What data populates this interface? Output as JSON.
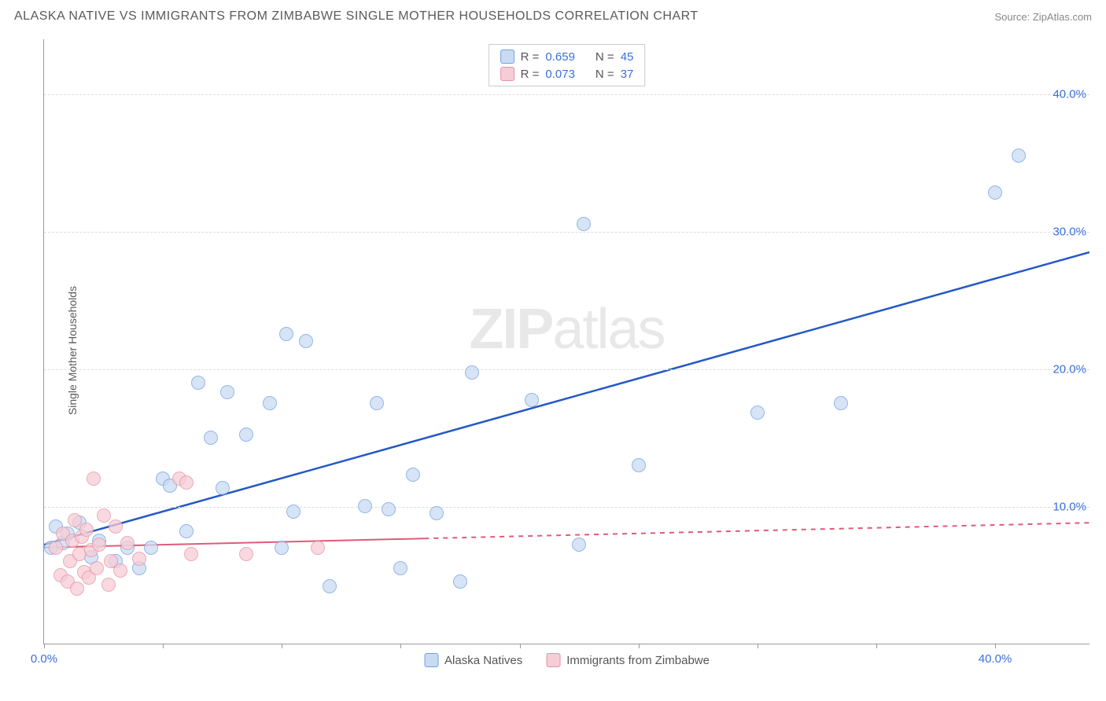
{
  "header": {
    "title": "ALASKA NATIVE VS IMMIGRANTS FROM ZIMBABWE SINGLE MOTHER HOUSEHOLDS CORRELATION CHART",
    "source": "Source: ZipAtlas.com"
  },
  "y_axis_label": "Single Mother Households",
  "watermark": {
    "bold": "ZIP",
    "rest": "atlas"
  },
  "chart": {
    "type": "scatter",
    "xlim": [
      0,
      44
    ],
    "ylim": [
      0,
      44
    ],
    "x_ticks": [
      {
        "pos": 0,
        "label": "0.0%"
      },
      {
        "pos": 5,
        "label": ""
      },
      {
        "pos": 10,
        "label": ""
      },
      {
        "pos": 15,
        "label": ""
      },
      {
        "pos": 20,
        "label": ""
      },
      {
        "pos": 25,
        "label": ""
      },
      {
        "pos": 30,
        "label": ""
      },
      {
        "pos": 35,
        "label": ""
      },
      {
        "pos": 40,
        "label": "40.0%"
      }
    ],
    "y_ticks": [
      {
        "pos": 10,
        "label": "10.0%"
      },
      {
        "pos": 20,
        "label": "20.0%"
      },
      {
        "pos": 30,
        "label": "30.0%"
      },
      {
        "pos": 40,
        "label": "40.0%"
      }
    ],
    "grid_color": "#dddddd",
    "axis_color": "#999999",
    "tick_label_color": "#3b6fd8",
    "background_color": "#ffffff",
    "point_radius": 9,
    "series": [
      {
        "name": "Alaska Natives",
        "fill": "#c9dbf3",
        "stroke": "#6fa0e0",
        "fill_opacity": 0.75,
        "trend": {
          "x1": 0,
          "y1": 7.2,
          "x2": 44,
          "y2": 28.5,
          "color": "#2458c7",
          "width": 2.5,
          "dash_from_x": null
        },
        "points": [
          [
            0.3,
            7.0
          ],
          [
            0.5,
            8.5
          ],
          [
            0.8,
            7.3
          ],
          [
            1.0,
            8.0
          ],
          [
            1.5,
            8.8
          ],
          [
            2.0,
            6.3
          ],
          [
            2.3,
            7.5
          ],
          [
            3.0,
            6.0
          ],
          [
            3.5,
            7.0
          ],
          [
            4.0,
            5.5
          ],
          [
            4.5,
            7.0
          ],
          [
            5.0,
            12.0
          ],
          [
            5.3,
            11.5
          ],
          [
            6.0,
            8.2
          ],
          [
            6.5,
            19.0
          ],
          [
            7.0,
            15.0
          ],
          [
            7.5,
            11.3
          ],
          [
            7.7,
            18.3
          ],
          [
            8.5,
            15.2
          ],
          [
            9.5,
            17.5
          ],
          [
            10.0,
            7.0
          ],
          [
            10.2,
            22.5
          ],
          [
            10.5,
            9.6
          ],
          [
            11.0,
            22.0
          ],
          [
            12.0,
            4.2
          ],
          [
            13.5,
            10.0
          ],
          [
            14.0,
            17.5
          ],
          [
            14.5,
            9.8
          ],
          [
            15.0,
            5.5
          ],
          [
            15.5,
            12.3
          ],
          [
            16.5,
            9.5
          ],
          [
            17.5,
            4.5
          ],
          [
            18.0,
            19.7
          ],
          [
            20.5,
            17.7
          ],
          [
            22.5,
            7.2
          ],
          [
            22.7,
            30.5
          ],
          [
            25.0,
            13.0
          ],
          [
            30.0,
            16.8
          ],
          [
            33.5,
            17.5
          ],
          [
            40.0,
            32.8
          ],
          [
            41.0,
            35.5
          ]
        ]
      },
      {
        "name": "Immigrants from Zimbabwe",
        "fill": "#f6cdd6",
        "stroke": "#e88fa3",
        "fill_opacity": 0.75,
        "trend": {
          "x1": 0,
          "y1": 7.0,
          "x2": 44,
          "y2": 8.8,
          "color": "#e05a7a",
          "width": 2,
          "dash_from_x": 16
        },
        "points": [
          [
            0.5,
            7.0
          ],
          [
            0.7,
            5.0
          ],
          [
            0.8,
            8.0
          ],
          [
            1.0,
            4.5
          ],
          [
            1.1,
            6.0
          ],
          [
            1.2,
            7.5
          ],
          [
            1.3,
            9.0
          ],
          [
            1.4,
            4.0
          ],
          [
            1.5,
            6.5
          ],
          [
            1.6,
            7.8
          ],
          [
            1.7,
            5.2
          ],
          [
            1.8,
            8.3
          ],
          [
            1.9,
            4.8
          ],
          [
            2.0,
            6.8
          ],
          [
            2.1,
            12.0
          ],
          [
            2.2,
            5.5
          ],
          [
            2.3,
            7.2
          ],
          [
            2.5,
            9.3
          ],
          [
            2.7,
            4.3
          ],
          [
            2.8,
            6.0
          ],
          [
            3.0,
            8.5
          ],
          [
            3.2,
            5.3
          ],
          [
            3.5,
            7.3
          ],
          [
            4.0,
            6.2
          ],
          [
            5.7,
            12.0
          ],
          [
            6.0,
            11.7
          ],
          [
            6.2,
            6.5
          ],
          [
            8.5,
            6.5
          ],
          [
            11.5,
            7.0
          ]
        ]
      }
    ]
  },
  "legend_top": [
    {
      "swatch_fill": "#c9dbf3",
      "swatch_stroke": "#6fa0e0",
      "r_label": "R =",
      "r": "0.659",
      "n_label": "N =",
      "n": "45"
    },
    {
      "swatch_fill": "#f6cdd6",
      "swatch_stroke": "#e88fa3",
      "r_label": "R =",
      "r": "0.073",
      "n_label": "N =",
      "n": "37"
    }
  ],
  "legend_bottom": [
    {
      "swatch_fill": "#c9dbf3",
      "swatch_stroke": "#6fa0e0",
      "label": "Alaska Natives"
    },
    {
      "swatch_fill": "#f6cdd6",
      "swatch_stroke": "#e88fa3",
      "label": "Immigrants from Zimbabwe"
    }
  ]
}
